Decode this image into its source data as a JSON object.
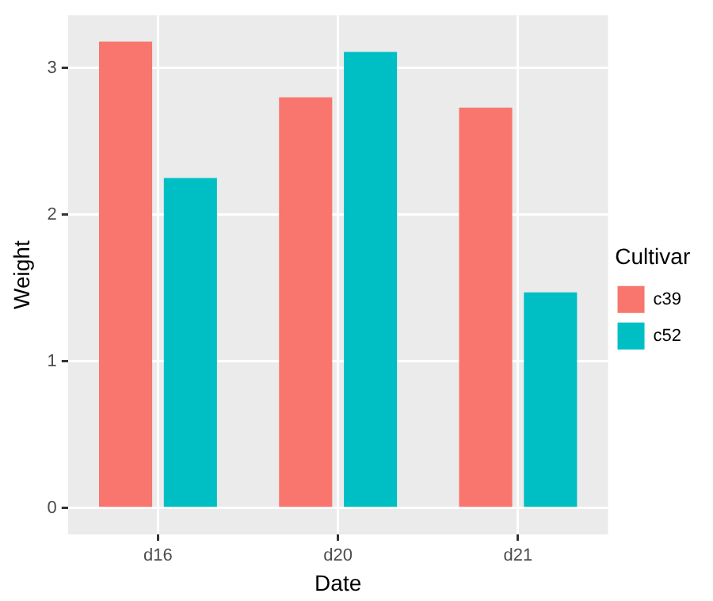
{
  "chart_data": {
    "type": "bar",
    "xlabel": "Date",
    "ylabel": "Weight",
    "legend_title": "Cultivar",
    "categories": [
      "d16",
      "d20",
      "d21"
    ],
    "series": [
      {
        "name": "c39",
        "color": "#f8766d",
        "values": [
          3.18,
          2.8,
          2.73
        ]
      },
      {
        "name": "c52",
        "color": "#00bfc4",
        "values": [
          2.25,
          3.11,
          1.47
        ]
      }
    ],
    "ylim": [
      -0.18,
      3.36
    ],
    "yticks": [
      0,
      1,
      2,
      3
    ],
    "grid": true,
    "legend": "right"
  }
}
